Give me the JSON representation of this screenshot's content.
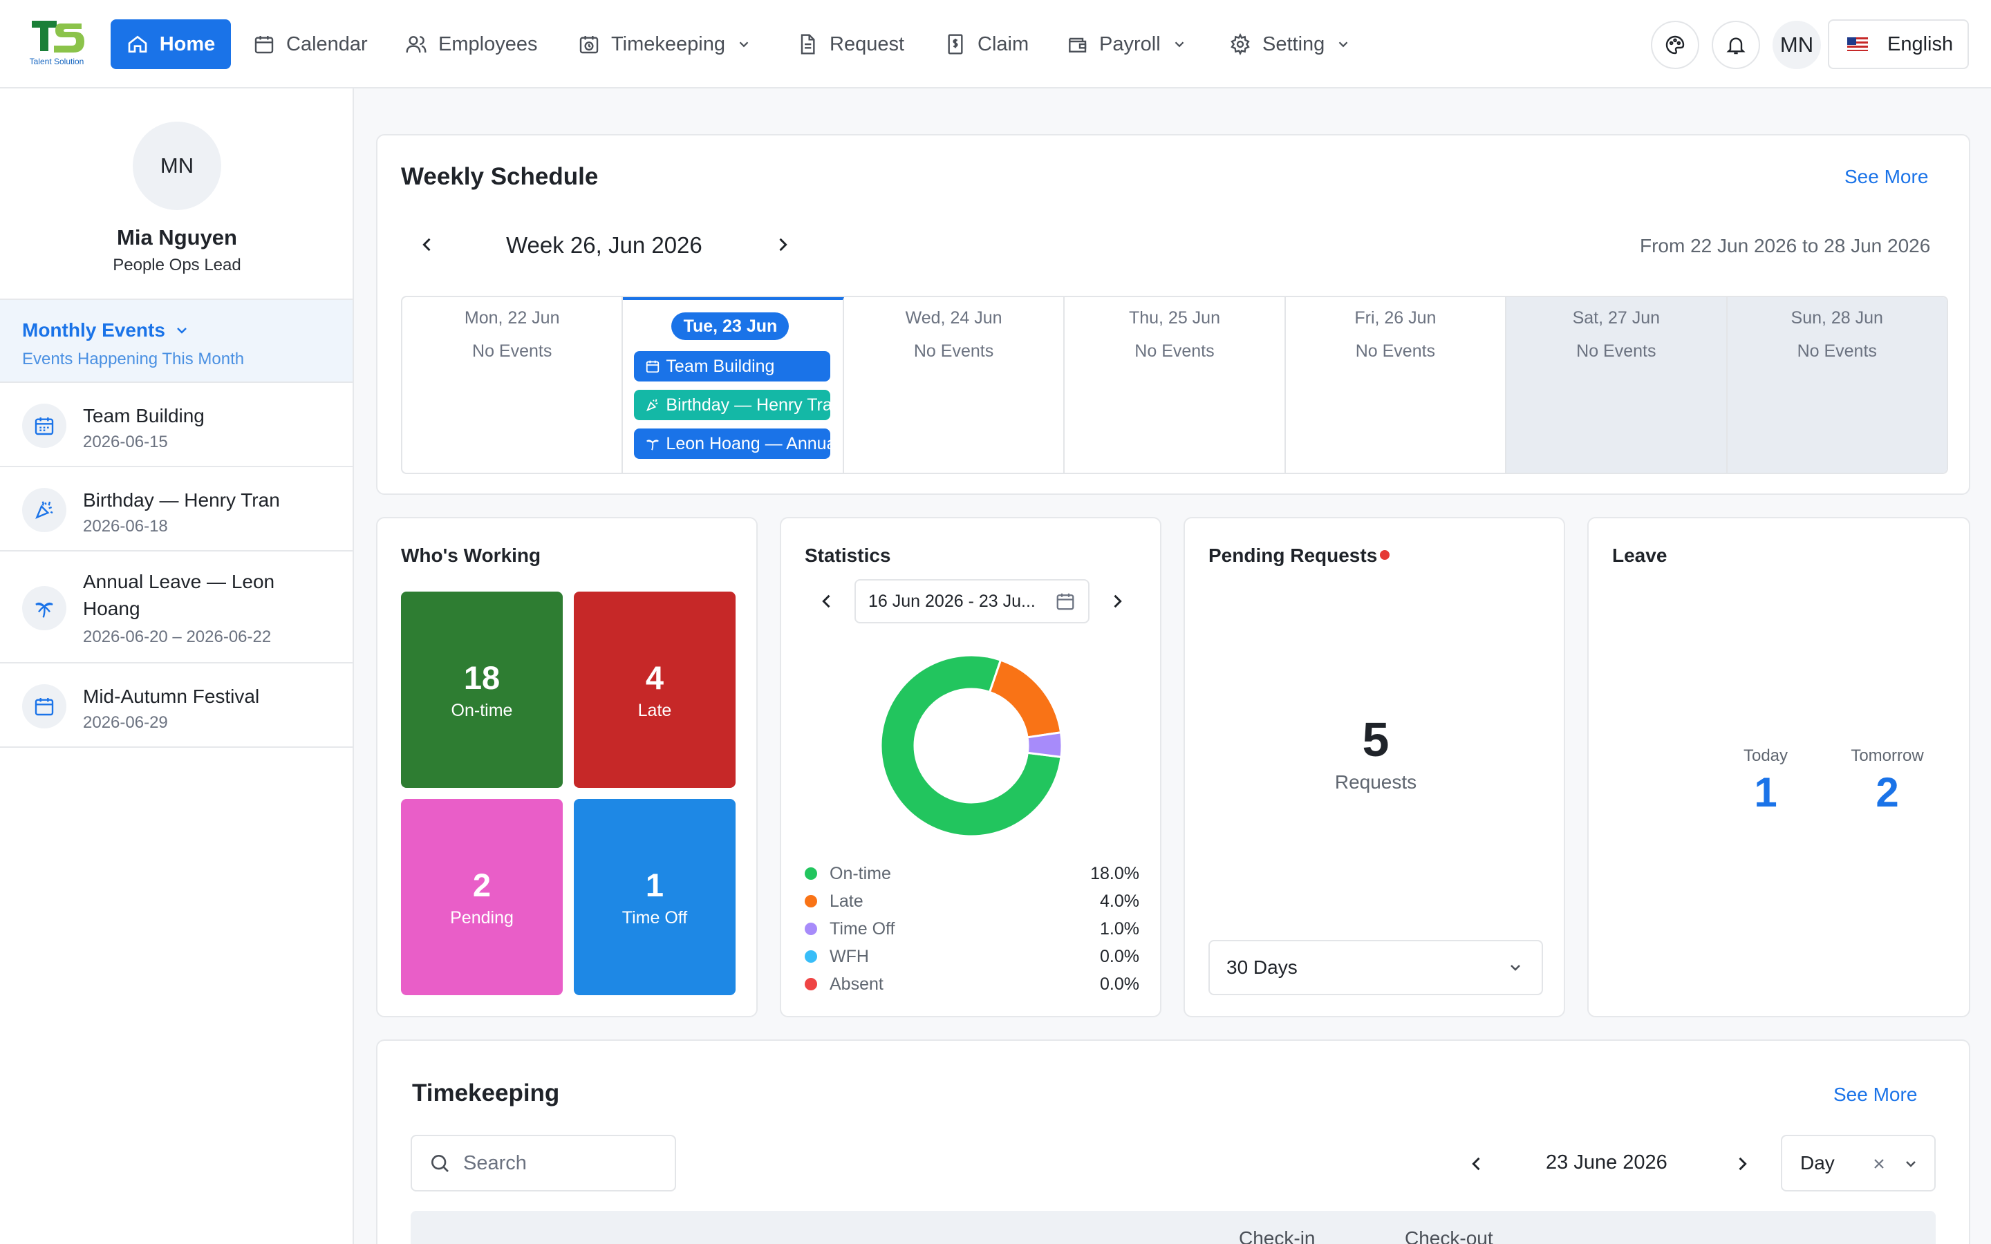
{
  "brand": {
    "logo_text": "Talent Solution"
  },
  "nav": [
    {
      "label": "Home",
      "icon": "home-icon",
      "active": true
    },
    {
      "label": "Calendar",
      "icon": "calendar-icon"
    },
    {
      "label": "Employees",
      "icon": "users-icon"
    },
    {
      "label": "Timekeeping",
      "icon": "clock-calendar-icon",
      "dropdown": true
    },
    {
      "label": "Request",
      "icon": "document-icon"
    },
    {
      "label": "Claim",
      "icon": "dollar-document-icon"
    },
    {
      "label": "Payroll",
      "icon": "wallet-icon",
      "dropdown": true
    },
    {
      "label": "Setting",
      "icon": "gear-icon",
      "dropdown": true
    }
  ],
  "header": {
    "avatar_initials": "MN",
    "language": "English"
  },
  "profile": {
    "initials": "MN",
    "name": "Mia Nguyen",
    "role": "People Ops Lead"
  },
  "monthly_events": {
    "title": "Monthly Events",
    "subtitle": "Events Happening This Month",
    "items": [
      {
        "title": "Team Building",
        "date": "2026-06-15",
        "icon": "calendar-icon"
      },
      {
        "title": "Birthday — Henry Tran",
        "date": "2026-06-18",
        "icon": "party-popper-icon"
      },
      {
        "title": "Annual Leave — Leon Hoang",
        "date": "2026-06-20 – 2026-06-22",
        "icon": "palm-tree-icon"
      },
      {
        "title": "Mid-Autumn Festival",
        "date": "2026-06-29",
        "icon": "calendar-icon"
      }
    ]
  },
  "weekly_schedule": {
    "title": "Weekly Schedule",
    "see_more": "See More",
    "week_label": "Week 26, Jun 2026",
    "range": "From 22 Jun 2026 to 28 Jun 2026",
    "no_events": "No Events",
    "days": [
      {
        "label": "Mon, 22 Jun"
      },
      {
        "label": "Tue, 23 Jun",
        "today": true
      },
      {
        "label": "Wed, 24 Jun"
      },
      {
        "label": "Thu, 25 Jun"
      },
      {
        "label": "Fri, 26 Jun"
      },
      {
        "label": "Sat, 27 Jun",
        "weekend": true
      },
      {
        "label": "Sun, 28 Jun",
        "weekend": true
      }
    ],
    "today_events": [
      {
        "label": "Team Building",
        "color": "#1a73e8",
        "icon": "calendar-icon"
      },
      {
        "label": "Birthday — Henry Tran",
        "color": "#14b8a6",
        "icon": "party-popper-icon"
      },
      {
        "label": "Leon Hoang — Annual Leave",
        "color": "#1a73e8",
        "icon": "palm-tree-icon"
      }
    ]
  },
  "whos_working": {
    "title": "Who's Working",
    "tiles": [
      {
        "value": "18",
        "label": "On-time",
        "color": "#2e7d32"
      },
      {
        "value": "4",
        "label": "Late",
        "color": "#c62828"
      },
      {
        "value": "2",
        "label": "Pending",
        "color": "#e95ec8"
      },
      {
        "value": "1",
        "label": "Time Off",
        "color": "#1e88e5"
      }
    ]
  },
  "statistics": {
    "title": "Statistics",
    "date_range": "16 Jun 2026 - 23 Ju...",
    "legend": [
      {
        "label": "On-time",
        "value": "18.0%",
        "pct": 18.0,
        "color": "#22c55e"
      },
      {
        "label": "Late",
        "value": "4.0%",
        "pct": 4.0,
        "color": "#f97316"
      },
      {
        "label": "Time Off",
        "value": "1.0%",
        "pct": 1.0,
        "color": "#a78bfa"
      },
      {
        "label": "WFH",
        "value": "0.0%",
        "pct": 0.0,
        "color": "#38bdf8"
      },
      {
        "label": "Absent",
        "value": "0.0%",
        "pct": 0.0,
        "color": "#ef4444"
      }
    ]
  },
  "pending": {
    "title": "Pending Requests",
    "count": "5",
    "label": "Requests",
    "period": "30 Days",
    "dot_color": "#e53935"
  },
  "leave": {
    "title": "Leave",
    "today_label": "Today",
    "today_value": "1",
    "tomorrow_label": "Tomorrow",
    "tomorrow_value": "2"
  },
  "timekeeping": {
    "title": "Timekeeping",
    "see_more": "See More",
    "search_placeholder": "Search",
    "date": "23 June 2026",
    "view": "Day",
    "columns": [
      "Check-in",
      "Check-out"
    ]
  }
}
